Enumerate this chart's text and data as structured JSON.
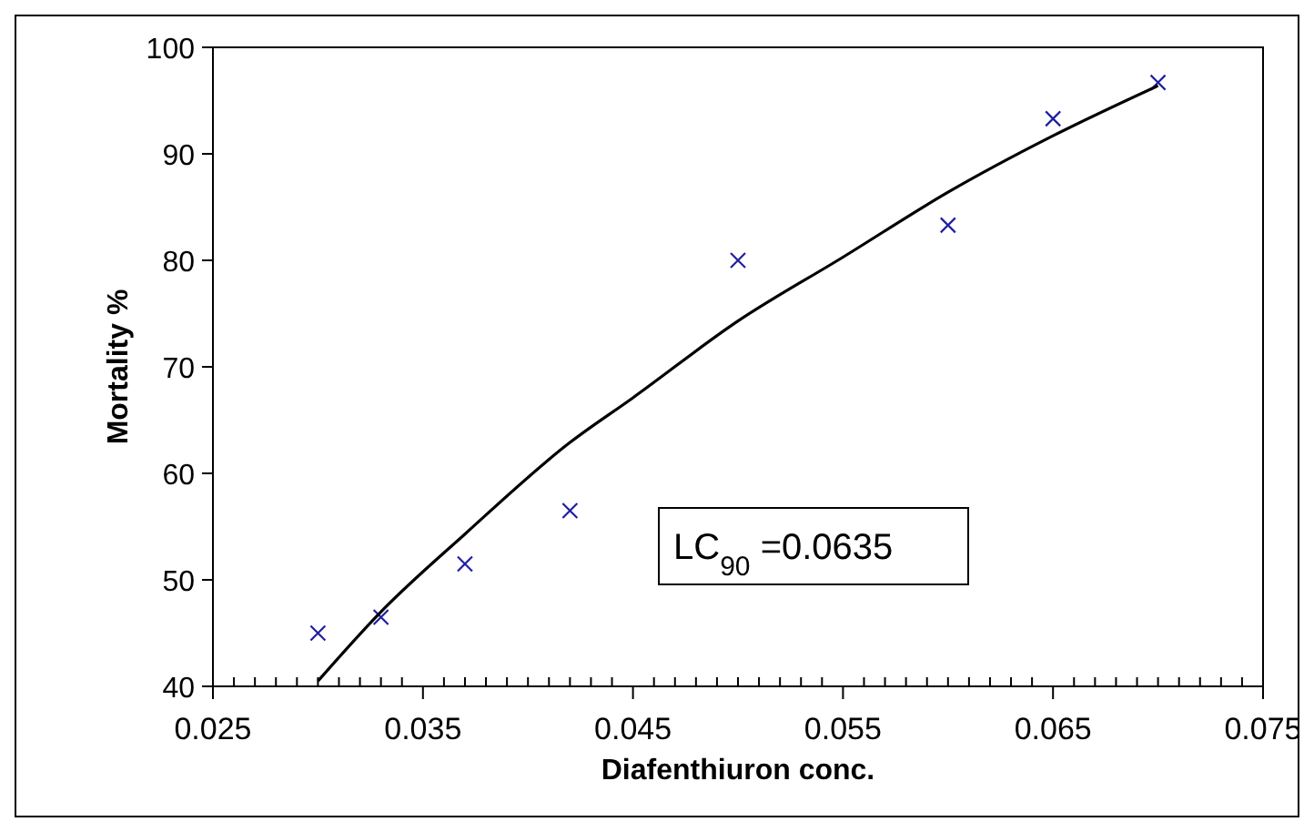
{
  "chart_data": {
    "type": "scatter",
    "xlabel": "Diafenthiuron conc.",
    "ylabel": "Mortality %",
    "xlim": [
      0.025,
      0.075
    ],
    "ylim": [
      40,
      100
    ],
    "xticks": [
      0.025,
      {
        "value": 0.026,
        "label": null
      },
      {
        "value": 0.027,
        "label": null
      },
      {
        "value": 0.028,
        "label": null
      },
      {
        "value": 0.029,
        "label": null
      },
      {
        "value": 0.03,
        "label": null
      },
      {
        "value": 0.031,
        "label": null
      },
      {
        "value": 0.032,
        "label": null
      },
      {
        "value": 0.033,
        "label": null
      },
      {
        "value": 0.034,
        "label": null
      },
      0.035,
      {
        "value": 0.036,
        "label": null
      },
      {
        "value": 0.037,
        "label": null
      },
      {
        "value": 0.038,
        "label": null
      },
      {
        "value": 0.039,
        "label": null
      },
      {
        "value": 0.04,
        "label": null
      },
      {
        "value": 0.041,
        "label": null
      },
      {
        "value": 0.042,
        "label": null
      },
      {
        "value": 0.043,
        "label": null
      },
      {
        "value": 0.044,
        "label": null
      },
      0.045,
      {
        "value": 0.046,
        "label": null
      },
      {
        "value": 0.047,
        "label": null
      },
      {
        "value": 0.048,
        "label": null
      },
      {
        "value": 0.049,
        "label": null
      },
      {
        "value": 0.05,
        "label": null
      },
      {
        "value": 0.051,
        "label": null
      },
      {
        "value": 0.052,
        "label": null
      },
      {
        "value": 0.053,
        "label": null
      },
      {
        "value": 0.054,
        "label": null
      },
      0.055,
      {
        "value": 0.056,
        "label": null
      },
      {
        "value": 0.057,
        "label": null
      },
      {
        "value": 0.058,
        "label": null
      },
      {
        "value": 0.059,
        "label": null
      },
      {
        "value": 0.06,
        "label": null
      },
      {
        "value": 0.061,
        "label": null
      },
      {
        "value": 0.062,
        "label": null
      },
      {
        "value": 0.063,
        "label": null
      },
      {
        "value": 0.064,
        "label": null
      },
      0.065,
      {
        "value": 0.066,
        "label": null
      },
      {
        "value": 0.067,
        "label": null
      },
      {
        "value": 0.068,
        "label": null
      },
      {
        "value": 0.069,
        "label": null
      },
      {
        "value": 0.07,
        "label": null
      },
      {
        "value": 0.071,
        "label": null
      },
      {
        "value": 0.072,
        "label": null
      },
      {
        "value": 0.073,
        "label": null
      },
      {
        "value": 0.074,
        "label": null
      },
      0.075
    ],
    "yticks": [
      40,
      50,
      60,
      70,
      80,
      90,
      100
    ],
    "grid": false,
    "annotations": [
      "LC$_{90}$ =0.0635"
    ],
    "series": [
      {
        "marker": "cross",
        "color": "#1f1fa0",
        "x": [
          0.03,
          0.033,
          0.037,
          0.042,
          0.05,
          0.06,
          0.065,
          0.07
        ],
        "values": [
          45,
          46.5,
          51.5,
          56.5,
          80,
          83.3,
          93.3,
          96.7
        ]
      },
      {
        "type": "line",
        "marker": "none",
        "line_style": "solid",
        "color": "#000000",
        "x": [
          0.03,
          0.033,
          0.037,
          0.042,
          0.045,
          0.05,
          0.055,
          0.06,
          0.065,
          0.07
        ],
        "values": [
          40.5,
          47,
          54.3,
          62.9,
          67.1,
          74.3,
          80.3,
          86.4,
          91.7,
          96.4
        ]
      }
    ]
  }
}
